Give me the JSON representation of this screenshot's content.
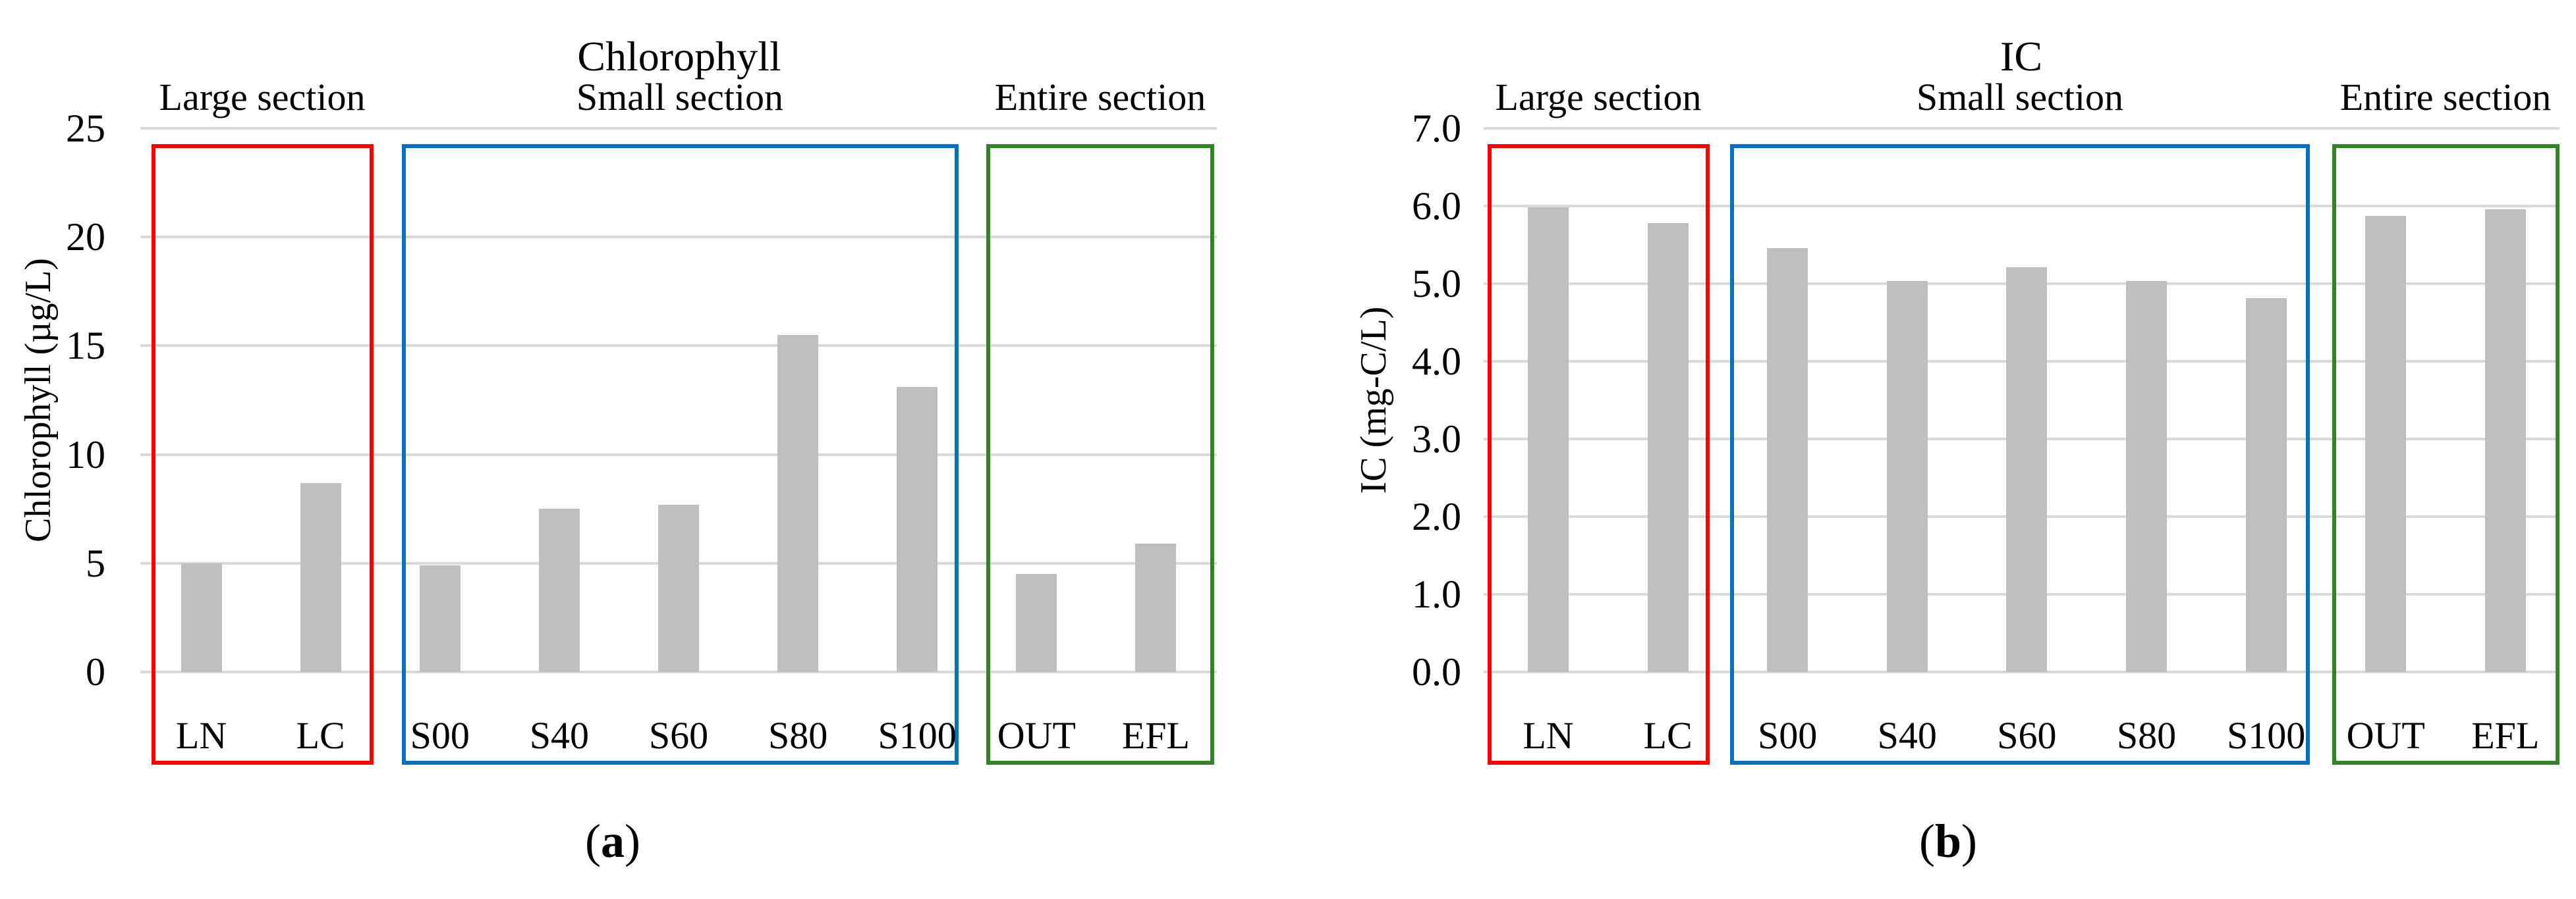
{
  "figure": {
    "background": "#FFFFFF",
    "captions": [
      {
        "open": "(",
        "letter": "a",
        "close": ")"
      },
      {
        "open": "(",
        "letter": "b",
        "close": ")"
      }
    ]
  },
  "colors": {
    "bar": "#BFBFBF",
    "gridline": "#D9D9D9",
    "text": "#000000",
    "large_section_box": "#FF0000",
    "small_section_box": "#0070C0",
    "entire_section_box": "#328228"
  },
  "chart_data": [
    {
      "type": "bar",
      "title": "Chlorophyll",
      "ylabel": "Chlorophyll (µg/L)",
      "xlabel": "",
      "categories": [
        "LN",
        "LC",
        "S00",
        "S40",
        "S60",
        "S80",
        "S100",
        "OUT",
        "EFL"
      ],
      "values": [
        5.0,
        8.7,
        4.9,
        7.5,
        7.7,
        15.5,
        13.1,
        4.5,
        5.9
      ],
      "ylim": [
        0,
        25
      ],
      "yticks": [
        0,
        5,
        10,
        15,
        20,
        25
      ],
      "ytick_labels": [
        "0",
        "5",
        "10",
        "15",
        "20",
        "25"
      ],
      "grid": true,
      "legend_position": "none",
      "bar_color": "#BFBFBF",
      "sections": [
        {
          "label": "Large section",
          "categories": [
            "LN",
            "LC"
          ],
          "color": "#FF0000"
        },
        {
          "label": "Small section",
          "categories": [
            "S00",
            "S40",
            "S60",
            "S80",
            "S100"
          ],
          "color": "#0070C0"
        },
        {
          "label": "Entire section",
          "categories": [
            "OUT",
            "EFL"
          ],
          "color": "#328228"
        }
      ],
      "caption": "(a)"
    },
    {
      "type": "bar",
      "title": "IC",
      "ylabel": "IC (mg-C/L)",
      "xlabel": "",
      "categories": [
        "LN",
        "LC",
        "S00",
        "S40",
        "S60",
        "S80",
        "S100",
        "OUT",
        "EFL"
      ],
      "values": [
        5.98,
        5.78,
        5.46,
        5.03,
        5.21,
        5.03,
        4.81,
        5.87,
        5.96
      ],
      "ylim": [
        0,
        7
      ],
      "yticks": [
        0,
        1,
        2,
        3,
        4,
        5,
        6,
        7
      ],
      "ytick_labels": [
        "0.0",
        "1.0",
        "2.0",
        "3.0",
        "4.0",
        "5.0",
        "6.0",
        "7.0"
      ],
      "grid": true,
      "legend_position": "none",
      "bar_color": "#BFBFBF",
      "sections": [
        {
          "label": "Large section",
          "categories": [
            "LN",
            "LC"
          ],
          "color": "#FF0000"
        },
        {
          "label": "Small section",
          "categories": [
            "S00",
            "S40",
            "S60",
            "S80",
            "S100"
          ],
          "color": "#0070C0"
        },
        {
          "label": "Entire section",
          "categories": [
            "OUT",
            "EFL"
          ],
          "color": "#328228"
        }
      ],
      "caption": "(b)"
    }
  ]
}
